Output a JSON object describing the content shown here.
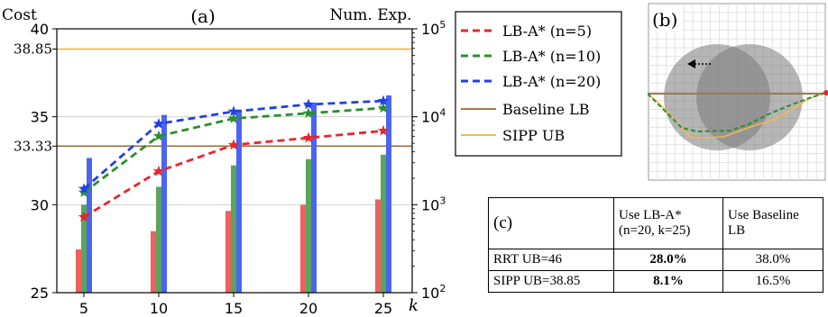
{
  "chart_data": [
    {
      "type": "bar+line",
      "title": "(a)",
      "ylabel_left": "Cost",
      "ylabel_right": "Num. Exp.",
      "xlabel": "k",
      "x": [
        5,
        10,
        15,
        20,
        25
      ],
      "x_ticks": [
        "5",
        "10",
        "15",
        "20",
        "25"
      ],
      "ylim_left": [
        25,
        40
      ],
      "yticks_left": [
        "25",
        "30",
        "35",
        "40"
      ],
      "extra_yticks_left": [
        "33.33",
        "38.85"
      ],
      "right_axis_scale": "log",
      "ylim_right": [
        100,
        100000
      ],
      "yticks_right": [
        {
          "base": "10",
          "exp": "2"
        },
        {
          "base": "10",
          "exp": "3"
        },
        {
          "base": "10",
          "exp": "4"
        },
        {
          "base": "10",
          "exp": "5"
        }
      ],
      "grid": "horizontal",
      "legend_position": "right",
      "series": [
        {
          "name": "LB-A* (n=5)",
          "style": "dashed-star",
          "color": "#e8262b",
          "values": [
            29.3,
            31.9,
            33.4,
            33.8,
            34.2
          ]
        },
        {
          "name": "LB-A* (n=10)",
          "style": "dashed-star",
          "color": "#2b8f2b",
          "values": [
            30.7,
            33.9,
            34.9,
            35.2,
            35.5
          ]
        },
        {
          "name": "LB-A* (n=20)",
          "style": "dashed-star",
          "color": "#2040e8",
          "values": [
            30.9,
            34.6,
            35.3,
            35.7,
            35.9
          ]
        }
      ],
      "bars": [
        {
          "name": "LB-A* (n=5)",
          "color": "#f06060",
          "values": [
            310,
            500,
            850,
            1000,
            1150
          ]
        },
        {
          "name": "LB-A* (n=10)",
          "color": "#5aa55a",
          "values": [
            1000,
            1600,
            2800,
            3300,
            3700
          ]
        },
        {
          "name": "LB-A* (n=20)",
          "color": "#4a65f0",
          "values": [
            3400,
            10500,
            12000,
            14500,
            17500
          ]
        }
      ],
      "reference_lines": [
        {
          "name": "Baseline LB",
          "color": "#a0784b",
          "value": 33.33
        },
        {
          "name": "SIPP UB",
          "color": "#f5b84a",
          "value": 38.85
        }
      ]
    }
  ],
  "panel_b": {
    "label": "(b)"
  },
  "table": {
    "label": "(c)",
    "headers": [
      "Use LB-A*",
      "(n=20, k=25)",
      "Use Baseline",
      "LB"
    ],
    "rows": [
      {
        "label": "RRT UB=46",
        "lba": "28.0%",
        "baseline": "38.0%"
      },
      {
        "label": "SIPP UB=38.85",
        "lba": "8.1%",
        "baseline": "16.5%"
      }
    ]
  }
}
